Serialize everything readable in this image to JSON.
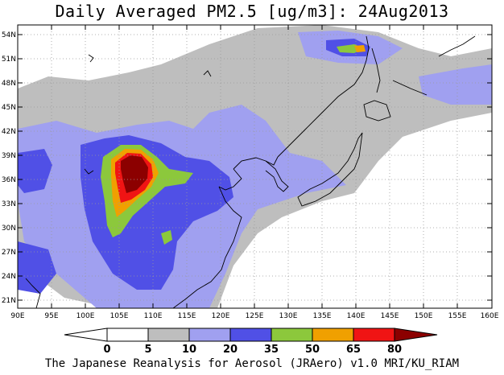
{
  "title": "Daily Averaged PM2.5 [ug/m3]: 24Aug2013",
  "footer": "The Japanese Reanalysis for Aerosol (JRAero) v1.0 MRI/KU_RIAM",
  "map": {
    "lon_range": [
      90,
      160
    ],
    "lat_range": [
      20,
      55
    ],
    "lon_ticks": [
      "90E",
      "95E",
      "100E",
      "105E",
      "110E",
      "115E",
      "120E",
      "125E",
      "130E",
      "135E",
      "140E",
      "145E",
      "150E",
      "155E",
      "160E"
    ],
    "lat_ticks": [
      "21N",
      "24N",
      "27N",
      "30N",
      "33N",
      "36N",
      "39N",
      "42N",
      "45N",
      "48N",
      "51N",
      "54N"
    ],
    "grid": true
  },
  "colorbar": {
    "levels": [
      "0",
      "5",
      "10",
      "20",
      "35",
      "50",
      "65",
      "80"
    ],
    "colors": [
      "#ffffff",
      "#bebebe",
      "#a0a0f0",
      "#5050e6",
      "#8cc83c",
      "#f0a000",
      "#f01414",
      "#8c0000"
    ]
  }
}
